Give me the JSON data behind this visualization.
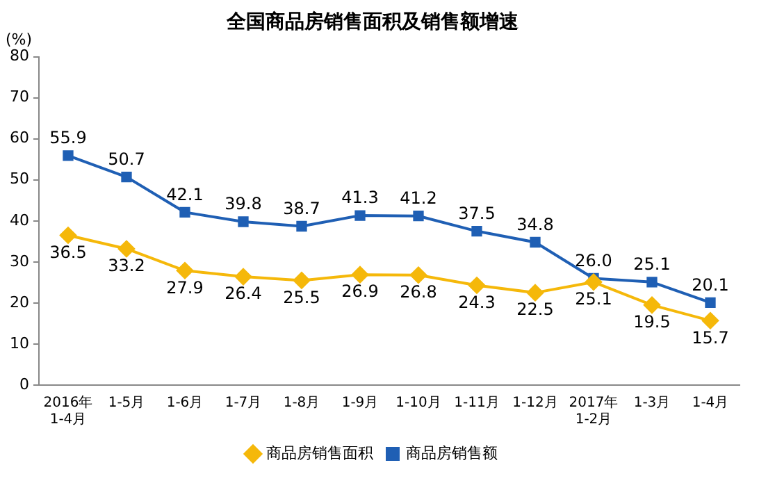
{
  "chart_data": {
    "type": "line",
    "title": "全国商品房销售面积及销售额增速",
    "ylabel": "(%)",
    "categories": [
      "2016年\n1-4月",
      "1-5月",
      "1-6月",
      "1-7月",
      "1-8月",
      "1-9月",
      "1-10月",
      "1-11月",
      "1-12月",
      "2017年\n1-2月",
      "1-3月",
      "1-4月"
    ],
    "series": [
      {
        "name": "商品房销售面积",
        "color": "#f5b80a",
        "marker": "diamond",
        "values": [
          36.5,
          33.2,
          27.9,
          26.4,
          25.5,
          26.9,
          26.8,
          24.3,
          22.5,
          25.1,
          19.5,
          15.7
        ],
        "value_labels": [
          "36.5",
          "33.2",
          "27.9",
          "26.4",
          "25.5",
          "26.9",
          "26.8",
          "24.3",
          "22.5",
          "25.1",
          "19.5",
          "15.7"
        ]
      },
      {
        "name": "商品房销售额",
        "color": "#1f5fb4",
        "marker": "square",
        "values": [
          55.9,
          50.7,
          42.1,
          39.8,
          38.7,
          41.3,
          41.2,
          37.5,
          34.8,
          26.0,
          25.1,
          20.1
        ],
        "value_labels": [
          "55.9",
          "50.7",
          "42.1",
          "39.8",
          "38.7",
          "41.3",
          "41.2",
          "37.5",
          "34.8",
          "26.0",
          "25.1",
          "20.1"
        ]
      }
    ],
    "ylim": [
      0,
      80
    ],
    "yticks": [
      0,
      10,
      20,
      30,
      40,
      50,
      60,
      70,
      80
    ],
    "grid": false,
    "legend": "bottom"
  }
}
